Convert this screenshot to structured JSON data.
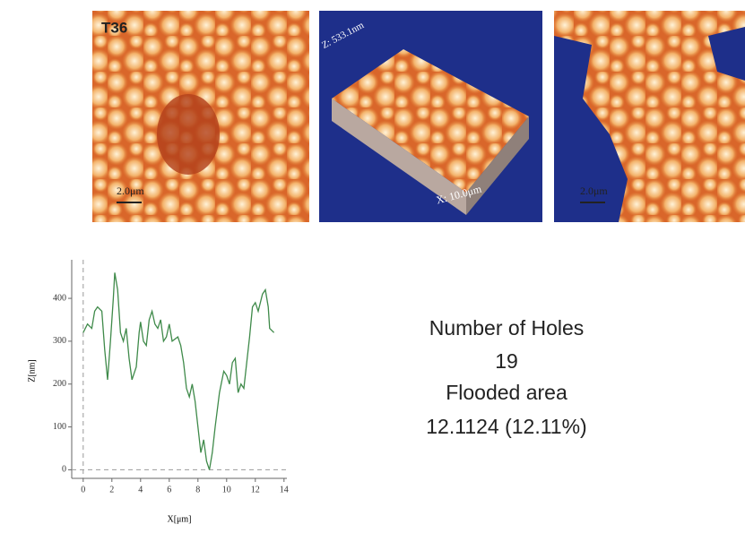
{
  "panels": {
    "label": "T36",
    "scale_left": "2.0μm",
    "z_label": "Z: 533.1nm",
    "x_label": "X: 10.0μm",
    "scale_right": "2.0μm"
  },
  "chart_data": {
    "type": "line",
    "x": [
      0,
      0.3,
      0.6,
      0.8,
      1.0,
      1.3,
      1.5,
      1.7,
      1.9,
      2.1,
      2.2,
      2.4,
      2.6,
      2.8,
      3.0,
      3.2,
      3.4,
      3.7,
      3.9,
      4.0,
      4.2,
      4.4,
      4.6,
      4.8,
      5.0,
      5.2,
      5.4,
      5.6,
      5.8,
      6.0,
      6.2,
      6.6,
      6.8,
      7.0,
      7.2,
      7.4,
      7.6,
      7.8,
      8.0,
      8.2,
      8.4,
      8.6,
      8.8,
      9.0,
      9.2,
      9.5,
      9.8,
      10.0,
      10.2,
      10.4,
      10.6,
      10.8,
      11.0,
      11.2,
      11.4,
      11.6,
      11.8,
      12.0,
      12.2,
      12.5,
      12.7,
      12.9,
      13.0,
      13.3
    ],
    "series": [
      {
        "color": "#3f8a4a",
        "values": [
          320,
          340,
          330,
          370,
          380,
          370,
          280,
          210,
          300,
          400,
          460,
          420,
          320,
          300,
          330,
          260,
          210,
          240,
          320,
          345,
          300,
          290,
          350,
          370,
          340,
          330,
          350,
          300,
          310,
          340,
          300,
          310,
          290,
          250,
          190,
          170,
          200,
          160,
          100,
          40,
          70,
          20,
          0,
          40,
          100,
          180,
          230,
          220,
          200,
          250,
          260,
          180,
          200,
          190,
          250,
          310,
          380,
          390,
          370,
          410,
          420,
          380,
          330,
          320
        ]
      }
    ],
    "xlim": [
      -0.8,
      14.2
    ],
    "ylim": [
      -20,
      490
    ],
    "xticks": [
      0,
      2,
      4,
      6,
      8,
      10,
      12,
      14
    ],
    "yticks": [
      0,
      100,
      200,
      300,
      400
    ],
    "x_label": "X[μm]",
    "y_label": "Z[nm]"
  },
  "stats": {
    "holes_label": "Number of Holes",
    "holes": 19,
    "area_label": "Flooded area",
    "area": "12.1124 (12.11%)"
  }
}
